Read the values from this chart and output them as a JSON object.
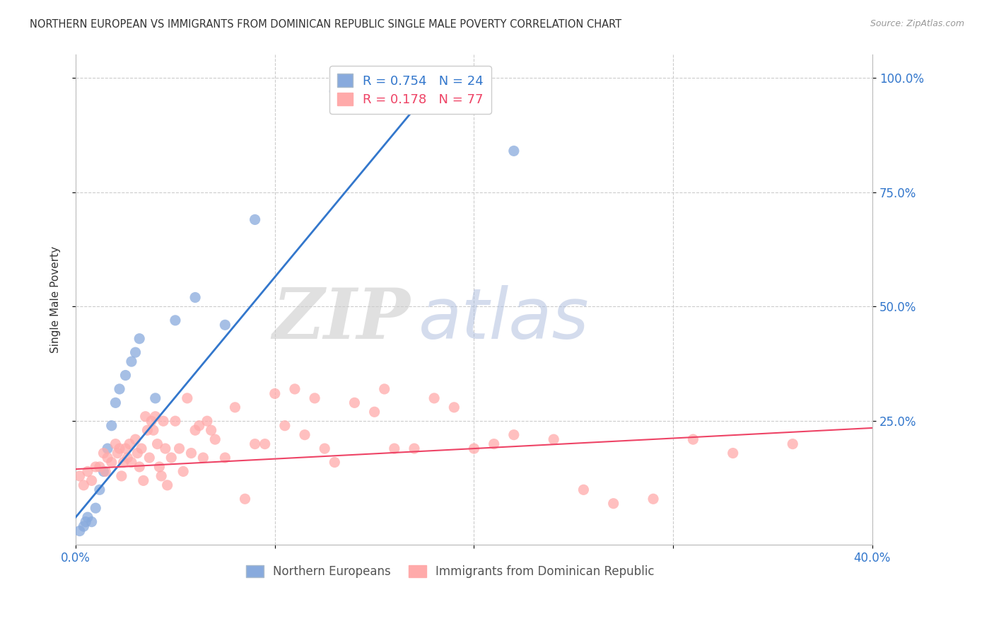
{
  "title": "NORTHERN EUROPEAN VS IMMIGRANTS FROM DOMINICAN REPUBLIC SINGLE MALE POVERTY CORRELATION CHART",
  "source": "Source: ZipAtlas.com",
  "ylabel": "Single Male Poverty",
  "ytick_labels": [
    "100.0%",
    "75.0%",
    "50.0%",
    "25.0%"
  ],
  "ytick_values": [
    1.0,
    0.75,
    0.5,
    0.25
  ],
  "xlim": [
    0.0,
    0.4
  ],
  "ylim": [
    -0.02,
    1.05
  ],
  "legend_label1": "R = 0.754   N = 24",
  "legend_label2": "R = 0.178   N = 77",
  "legend_group1": "Northern Europeans",
  "legend_group2": "Immigrants from Dominican Republic",
  "blue_color": "#88AADD",
  "pink_color": "#FFAAAA",
  "blue_line_color": "#3377CC",
  "pink_line_color": "#EE4466",
  "blue_scatter": [
    [
      0.002,
      0.01
    ],
    [
      0.004,
      0.02
    ],
    [
      0.005,
      0.03
    ],
    [
      0.006,
      0.04
    ],
    [
      0.008,
      0.03
    ],
    [
      0.01,
      0.06
    ],
    [
      0.012,
      0.1
    ],
    [
      0.014,
      0.14
    ],
    [
      0.016,
      0.19
    ],
    [
      0.018,
      0.24
    ],
    [
      0.02,
      0.29
    ],
    [
      0.022,
      0.32
    ],
    [
      0.025,
      0.35
    ],
    [
      0.028,
      0.38
    ],
    [
      0.03,
      0.4
    ],
    [
      0.032,
      0.43
    ],
    [
      0.04,
      0.3
    ],
    [
      0.05,
      0.47
    ],
    [
      0.06,
      0.52
    ],
    [
      0.075,
      0.46
    ],
    [
      0.09,
      0.69
    ],
    [
      0.13,
      0.97
    ],
    [
      0.16,
      0.97
    ],
    [
      0.22,
      0.84
    ]
  ],
  "pink_scatter": [
    [
      0.002,
      0.13
    ],
    [
      0.004,
      0.11
    ],
    [
      0.006,
      0.14
    ],
    [
      0.008,
      0.12
    ],
    [
      0.01,
      0.15
    ],
    [
      0.012,
      0.15
    ],
    [
      0.014,
      0.18
    ],
    [
      0.015,
      0.14
    ],
    [
      0.016,
      0.17
    ],
    [
      0.018,
      0.16
    ],
    [
      0.02,
      0.2
    ],
    [
      0.021,
      0.18
    ],
    [
      0.022,
      0.19
    ],
    [
      0.023,
      0.13
    ],
    [
      0.024,
      0.16
    ],
    [
      0.025,
      0.19
    ],
    [
      0.026,
      0.17
    ],
    [
      0.027,
      0.2
    ],
    [
      0.028,
      0.16
    ],
    [
      0.03,
      0.21
    ],
    [
      0.031,
      0.18
    ],
    [
      0.032,
      0.15
    ],
    [
      0.033,
      0.19
    ],
    [
      0.034,
      0.12
    ],
    [
      0.035,
      0.26
    ],
    [
      0.036,
      0.23
    ],
    [
      0.037,
      0.17
    ],
    [
      0.038,
      0.25
    ],
    [
      0.039,
      0.23
    ],
    [
      0.04,
      0.26
    ],
    [
      0.041,
      0.2
    ],
    [
      0.042,
      0.15
    ],
    [
      0.043,
      0.13
    ],
    [
      0.044,
      0.25
    ],
    [
      0.045,
      0.19
    ],
    [
      0.046,
      0.11
    ],
    [
      0.048,
      0.17
    ],
    [
      0.05,
      0.25
    ],
    [
      0.052,
      0.19
    ],
    [
      0.054,
      0.14
    ],
    [
      0.056,
      0.3
    ],
    [
      0.058,
      0.18
    ],
    [
      0.06,
      0.23
    ],
    [
      0.062,
      0.24
    ],
    [
      0.064,
      0.17
    ],
    [
      0.066,
      0.25
    ],
    [
      0.068,
      0.23
    ],
    [
      0.07,
      0.21
    ],
    [
      0.075,
      0.17
    ],
    [
      0.08,
      0.28
    ],
    [
      0.085,
      0.08
    ],
    [
      0.09,
      0.2
    ],
    [
      0.095,
      0.2
    ],
    [
      0.1,
      0.31
    ],
    [
      0.105,
      0.24
    ],
    [
      0.11,
      0.32
    ],
    [
      0.115,
      0.22
    ],
    [
      0.12,
      0.3
    ],
    [
      0.125,
      0.19
    ],
    [
      0.13,
      0.16
    ],
    [
      0.14,
      0.29
    ],
    [
      0.15,
      0.27
    ],
    [
      0.155,
      0.32
    ],
    [
      0.16,
      0.19
    ],
    [
      0.17,
      0.19
    ],
    [
      0.18,
      0.3
    ],
    [
      0.19,
      0.28
    ],
    [
      0.2,
      0.19
    ],
    [
      0.21,
      0.2
    ],
    [
      0.22,
      0.22
    ],
    [
      0.24,
      0.21
    ],
    [
      0.255,
      0.1
    ],
    [
      0.27,
      0.07
    ],
    [
      0.29,
      0.08
    ],
    [
      0.31,
      0.21
    ],
    [
      0.33,
      0.18
    ],
    [
      0.36,
      0.2
    ]
  ],
  "blue_line_x": [
    0.0,
    0.183
  ],
  "blue_line_y": [
    0.04,
    1.0
  ],
  "pink_line_x": [
    0.0,
    0.4
  ],
  "pink_line_y": [
    0.145,
    0.235
  ],
  "watermark_zip": "ZIP",
  "watermark_atlas": "atlas",
  "background_color": "#FFFFFF"
}
